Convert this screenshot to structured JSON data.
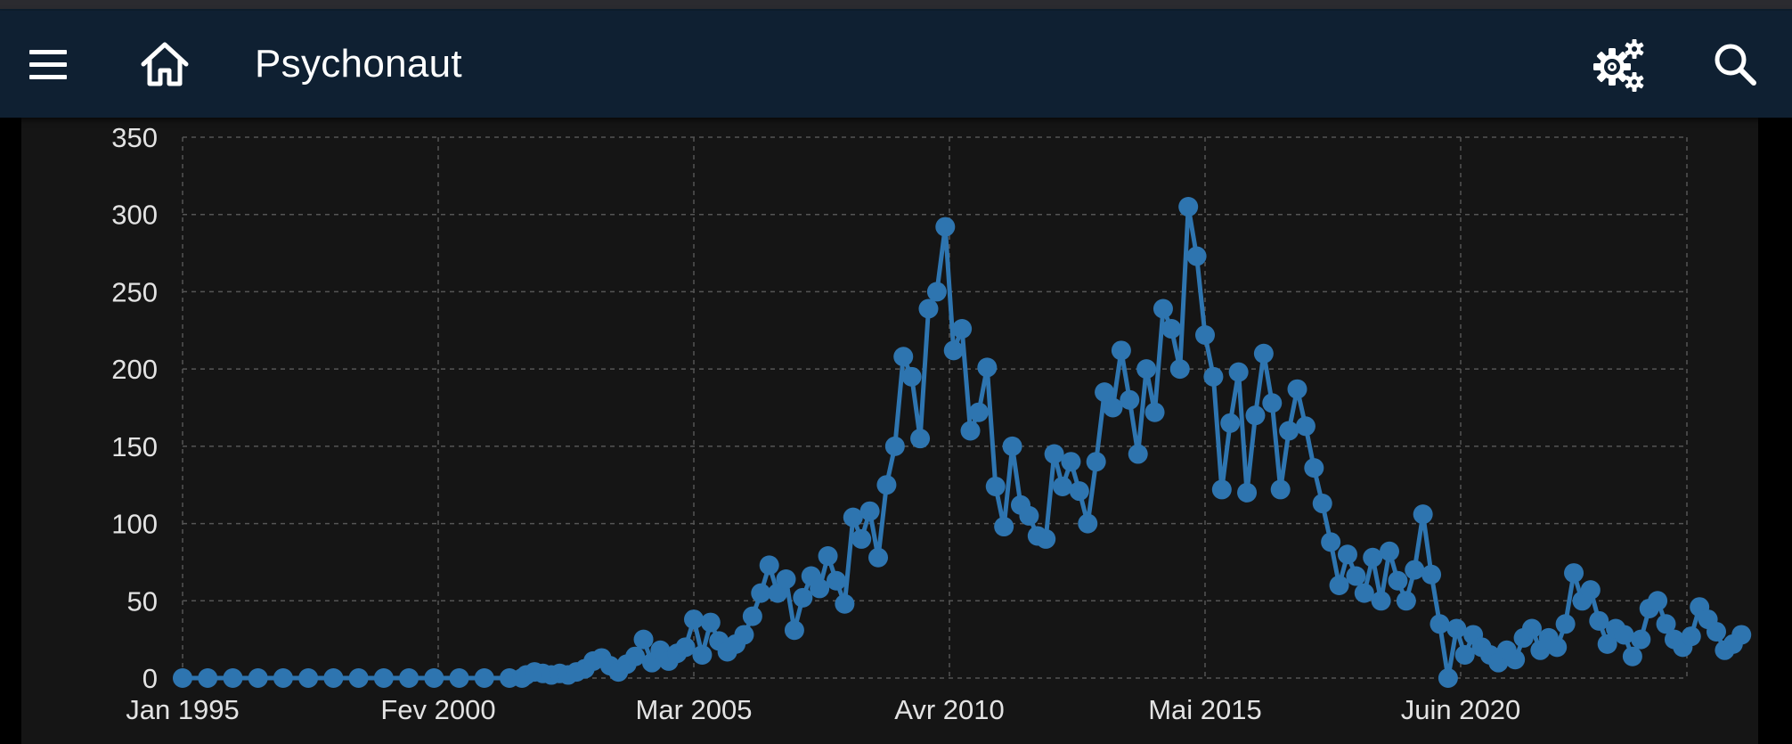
{
  "app_bar": {
    "title": "Psychonaut",
    "icons": [
      "menu-icon",
      "home-icon",
      "settings-icon",
      "search-icon"
    ]
  },
  "colors": {
    "app_bar_bg": "#0f2032",
    "chart_bg": "#151515",
    "series": "#2e75b0",
    "grid": "#555555",
    "tick_text": "#e3e3e3"
  },
  "chart_data": {
    "type": "line",
    "title": "",
    "xlabel": "",
    "ylabel": "",
    "x_range": [
      "1995-01",
      "2024-07"
    ],
    "ylim": [
      0,
      350
    ],
    "yticks": [
      0,
      50,
      100,
      150,
      200,
      250,
      300,
      350
    ],
    "xticks": [
      {
        "label": "Jan 1995",
        "date": "1995-01"
      },
      {
        "label": "Fev 2000",
        "date": "2000-02"
      },
      {
        "label": "Mar 2005",
        "date": "2005-03"
      },
      {
        "label": "Avr 2010",
        "date": "2010-04"
      },
      {
        "label": "Mai 2015",
        "date": "2015-05"
      },
      {
        "label": "Juin 2020",
        "date": "2020-06"
      }
    ],
    "grid": true,
    "markers": true,
    "series": [
      {
        "values": [
          [
            "1995-01",
            0
          ],
          [
            "1995-07",
            0
          ],
          [
            "1996-01",
            0
          ],
          [
            "1996-07",
            0
          ],
          [
            "1997-01",
            0
          ],
          [
            "1997-07",
            0
          ],
          [
            "1998-01",
            0
          ],
          [
            "1998-07",
            0
          ],
          [
            "1999-01",
            0
          ],
          [
            "1999-07",
            0
          ],
          [
            "2000-01",
            0
          ],
          [
            "2000-07",
            0
          ],
          [
            "2001-01",
            0
          ],
          [
            "2001-07",
            0
          ],
          [
            "2001-10",
            0
          ],
          [
            "2001-11",
            2
          ],
          [
            "2002-01",
            4
          ],
          [
            "2002-03",
            3
          ],
          [
            "2002-05",
            2
          ],
          [
            "2002-07",
            3
          ],
          [
            "2002-09",
            2
          ],
          [
            "2002-11",
            4
          ],
          [
            "2003-01",
            6
          ],
          [
            "2003-03",
            11
          ],
          [
            "2003-05",
            13
          ],
          [
            "2003-07",
            8
          ],
          [
            "2003-09",
            4
          ],
          [
            "2003-11",
            9
          ],
          [
            "2004-01",
            14
          ],
          [
            "2004-03",
            25
          ],
          [
            "2004-05",
            10
          ],
          [
            "2004-07",
            18
          ],
          [
            "2004-09",
            11
          ],
          [
            "2004-11",
            16
          ],
          [
            "2005-01",
            20
          ],
          [
            "2005-03",
            38
          ],
          [
            "2005-05",
            15
          ],
          [
            "2005-07",
            36
          ],
          [
            "2005-09",
            24
          ],
          [
            "2005-11",
            17
          ],
          [
            "2006-01",
            22
          ],
          [
            "2006-03",
            28
          ],
          [
            "2006-05",
            40
          ],
          [
            "2006-07",
            55
          ],
          [
            "2006-09",
            73
          ],
          [
            "2006-11",
            55
          ],
          [
            "2007-01",
            64
          ],
          [
            "2007-03",
            31
          ],
          [
            "2007-05",
            52
          ],
          [
            "2007-07",
            66
          ],
          [
            "2007-09",
            58
          ],
          [
            "2007-11",
            79
          ],
          [
            "2008-01",
            63
          ],
          [
            "2008-03",
            48
          ],
          [
            "2008-05",
            104
          ],
          [
            "2008-07",
            90
          ],
          [
            "2008-09",
            108
          ],
          [
            "2008-11",
            78
          ],
          [
            "2009-01",
            125
          ],
          [
            "2009-03",
            150
          ],
          [
            "2009-05",
            208
          ],
          [
            "2009-07",
            195
          ],
          [
            "2009-09",
            155
          ],
          [
            "2009-11",
            239
          ],
          [
            "2010-01",
            250
          ],
          [
            "2010-03",
            292
          ],
          [
            "2010-05",
            212
          ],
          [
            "2010-07",
            226
          ],
          [
            "2010-09",
            160
          ],
          [
            "2010-11",
            172
          ],
          [
            "2011-01",
            201
          ],
          [
            "2011-03",
            124
          ],
          [
            "2011-05",
            98
          ],
          [
            "2011-07",
            150
          ],
          [
            "2011-09",
            112
          ],
          [
            "2011-11",
            105
          ],
          [
            "2012-01",
            92
          ],
          [
            "2012-03",
            90
          ],
          [
            "2012-05",
            145
          ],
          [
            "2012-07",
            124
          ],
          [
            "2012-09",
            140
          ],
          [
            "2012-11",
            121
          ],
          [
            "2013-01",
            100
          ],
          [
            "2013-03",
            140
          ],
          [
            "2013-05",
            185
          ],
          [
            "2013-07",
            175
          ],
          [
            "2013-09",
            212
          ],
          [
            "2013-11",
            180
          ],
          [
            "2014-01",
            145
          ],
          [
            "2014-03",
            200
          ],
          [
            "2014-05",
            172
          ],
          [
            "2014-07",
            239
          ],
          [
            "2014-09",
            226
          ],
          [
            "2014-11",
            200
          ],
          [
            "2015-01",
            305
          ],
          [
            "2015-03",
            273
          ],
          [
            "2015-05",
            222
          ],
          [
            "2015-07",
            195
          ],
          [
            "2015-09",
            122
          ],
          [
            "2015-11",
            165
          ],
          [
            "2016-01",
            198
          ],
          [
            "2016-03",
            120
          ],
          [
            "2016-05",
            170
          ],
          [
            "2016-07",
            210
          ],
          [
            "2016-09",
            178
          ],
          [
            "2016-11",
            122
          ],
          [
            "2017-01",
            160
          ],
          [
            "2017-03",
            187
          ],
          [
            "2017-05",
            163
          ],
          [
            "2017-07",
            136
          ],
          [
            "2017-09",
            113
          ],
          [
            "2017-11",
            88
          ],
          [
            "2018-01",
            60
          ],
          [
            "2018-03",
            80
          ],
          [
            "2018-05",
            66
          ],
          [
            "2018-07",
            55
          ],
          [
            "2018-09",
            78
          ],
          [
            "2018-11",
            50
          ],
          [
            "2019-01",
            82
          ],
          [
            "2019-03",
            63
          ],
          [
            "2019-05",
            50
          ],
          [
            "2019-07",
            70
          ],
          [
            "2019-09",
            106
          ],
          [
            "2019-11",
            67
          ],
          [
            "2020-01",
            35
          ],
          [
            "2020-03",
            0
          ],
          [
            "2020-05",
            32
          ],
          [
            "2020-07",
            15
          ],
          [
            "2020-09",
            28
          ],
          [
            "2020-11",
            20
          ],
          [
            "2021-01",
            15
          ],
          [
            "2021-03",
            10
          ],
          [
            "2021-05",
            18
          ],
          [
            "2021-07",
            12
          ],
          [
            "2021-09",
            26
          ],
          [
            "2021-11",
            32
          ],
          [
            "2022-01",
            18
          ],
          [
            "2022-03",
            26
          ],
          [
            "2022-05",
            20
          ],
          [
            "2022-07",
            35
          ],
          [
            "2022-09",
            68
          ],
          [
            "2022-11",
            50
          ],
          [
            "2023-01",
            57
          ],
          [
            "2023-03",
            37
          ],
          [
            "2023-05",
            22
          ],
          [
            "2023-07",
            32
          ],
          [
            "2023-09",
            28
          ],
          [
            "2023-11",
            14
          ],
          [
            "2024-01",
            25
          ],
          [
            "2024-03",
            45
          ],
          [
            "2024-05",
            50
          ],
          [
            "2024-07",
            35
          ],
          [
            "2024-09",
            25
          ],
          [
            "2024-11",
            20
          ],
          [
            "2025-01",
            27
          ],
          [
            "2025-03",
            46
          ],
          [
            "2025-05",
            38
          ],
          [
            "2025-07",
            30
          ],
          [
            "2025-09",
            18
          ],
          [
            "2025-11",
            22
          ],
          [
            "2026-01",
            28
          ]
        ]
      }
    ]
  }
}
